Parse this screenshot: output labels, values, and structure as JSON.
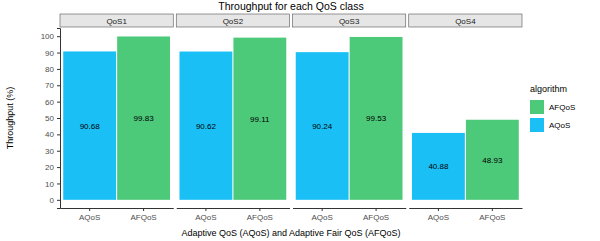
{
  "chart_data": {
    "type": "bar",
    "title": "Throughput for each QoS class",
    "x_label": "Adaptive QoS (AQoS) and Adaptive Fair QoS (AFQoS)",
    "y_label": "Throughput (%)",
    "legend_title": "algorithm",
    "categories": [
      "QoS1",
      "QoS2",
      "QoS3",
      "QoS4"
    ],
    "series": [
      {
        "name": "AQoS",
        "color": "#1ABFF5",
        "values": [
          90.68,
          90.62,
          90.24,
          40.88
        ]
      },
      {
        "name": "AFQoS",
        "color": "#4DC97A",
        "values": [
          99.83,
          99.11,
          99.53,
          48.93
        ]
      }
    ],
    "ylim": [
      -5,
      105
    ],
    "yticks": [
      0,
      10,
      20,
      30,
      40,
      50,
      60,
      70,
      80,
      90,
      100
    ],
    "data_labels": true,
    "grid": false,
    "legend": "right"
  }
}
